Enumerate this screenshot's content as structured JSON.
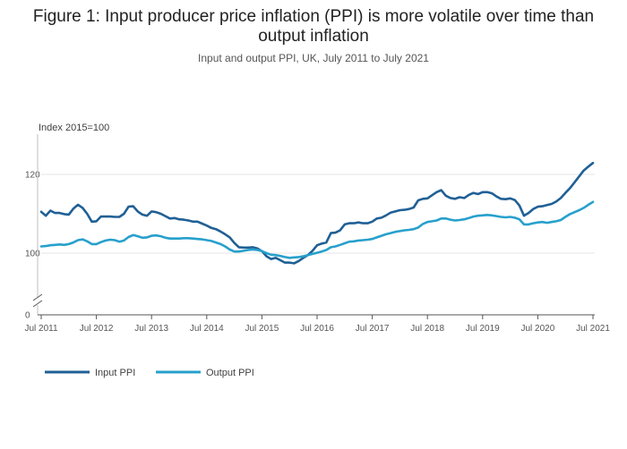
{
  "header": {
    "title": "Figure 1: Input producer price inflation (PPI) is more volatile over time than output inflation",
    "subtitle": "Input and output PPI, UK, July 2011 to July 2021"
  },
  "chart_data": {
    "type": "line",
    "title": "Figure 1: Input producer price inflation (PPI) is more volatile over time than output inflation",
    "subtitle": "Input and output PPI, UK, July 2011 to July 2021",
    "ylabel": "Index 2015=100",
    "y_axis_break": true,
    "ylim": [
      0,
      130
    ],
    "y_ticks": [
      0,
      100,
      120
    ],
    "x_ticks": [
      "Jul 2011",
      "Jul 2012",
      "Jul 2013",
      "Jul 2014",
      "Jul 2015",
      "Jul 2016",
      "Jul 2017",
      "Jul 2018",
      "Jul 2019",
      "Jul 2020",
      "Jul 2021"
    ],
    "x_start": "2011-07",
    "grid": true,
    "legend_position": "bottom-left",
    "series": [
      {
        "name": "Input PPI",
        "color": "#206095",
        "values": [
          110.5,
          109.5,
          110.8,
          110.2,
          110.2,
          109.9,
          109.8,
          111.3,
          112.3,
          111.5,
          110.0,
          108.0,
          108.1,
          109.3,
          109.3,
          109.3,
          109.2,
          109.2,
          110.0,
          111.8,
          111.9,
          110.6,
          109.8,
          109.5,
          110.6,
          110.4,
          110.0,
          109.4,
          108.8,
          108.9,
          108.6,
          108.5,
          108.3,
          108.0,
          108.0,
          107.5,
          107.0,
          106.4,
          106.1,
          105.5,
          104.8,
          104.0,
          102.6,
          101.5,
          101.4,
          101.4,
          101.5,
          101.2,
          100.5,
          99.2,
          98.5,
          98.8,
          98.2,
          97.6,
          97.6,
          97.4,
          98.0,
          98.8,
          99.5,
          100.6,
          102.0,
          102.4,
          102.7,
          105.1,
          105.2,
          105.8,
          107.3,
          107.6,
          107.6,
          107.8,
          107.6,
          107.6,
          108.0,
          108.8,
          109.0,
          109.6,
          110.3,
          110.6,
          110.9,
          111.0,
          111.2,
          111.6,
          113.4,
          113.8,
          113.9,
          114.7,
          115.5,
          116.0,
          114.6,
          114.0,
          113.8,
          114.2,
          114.0,
          114.8,
          115.3,
          115.0,
          115.5,
          115.5,
          115.2,
          114.4,
          113.8,
          113.7,
          113.9,
          113.5,
          112.1,
          109.5,
          110.2,
          111.2,
          111.8,
          111.9,
          112.2,
          112.5,
          113.1,
          114.0,
          115.3,
          116.5,
          118.0,
          119.5,
          121.0,
          122.0,
          122.9
        ]
      },
      {
        "name": "Output PPI",
        "color": "#27a0cc",
        "values": [
          101.7,
          101.8,
          102.0,
          102.1,
          102.2,
          102.1,
          102.3,
          102.7,
          103.3,
          103.5,
          103.0,
          102.3,
          102.3,
          102.8,
          103.2,
          103.4,
          103.3,
          102.9,
          103.2,
          104.1,
          104.6,
          104.3,
          103.9,
          104.0,
          104.4,
          104.5,
          104.3,
          103.9,
          103.7,
          103.7,
          103.7,
          103.8,
          103.8,
          103.7,
          103.6,
          103.5,
          103.3,
          103.1,
          102.7,
          102.3,
          101.7,
          100.9,
          100.4,
          100.4,
          100.6,
          100.8,
          100.9,
          100.8,
          100.5,
          100.0,
          99.6,
          99.5,
          99.3,
          99.0,
          98.8,
          98.9,
          99.0,
          99.2,
          99.5,
          99.8,
          100.1,
          100.4,
          100.8,
          101.5,
          101.7,
          102.1,
          102.5,
          102.9,
          103.0,
          103.2,
          103.3,
          103.4,
          103.6,
          104.0,
          104.4,
          104.8,
          105.1,
          105.4,
          105.6,
          105.8,
          105.9,
          106.1,
          106.5,
          107.4,
          107.9,
          108.1,
          108.3,
          108.8,
          108.8,
          108.5,
          108.3,
          108.4,
          108.6,
          108.9,
          109.3,
          109.5,
          109.6,
          109.7,
          109.6,
          109.4,
          109.2,
          109.1,
          109.2,
          109.0,
          108.6,
          107.3,
          107.3,
          107.6,
          107.8,
          107.9,
          107.7,
          107.9,
          108.1,
          108.4,
          109.2,
          109.9,
          110.4,
          110.9,
          111.5,
          112.3,
          113.0
        ]
      }
    ]
  }
}
